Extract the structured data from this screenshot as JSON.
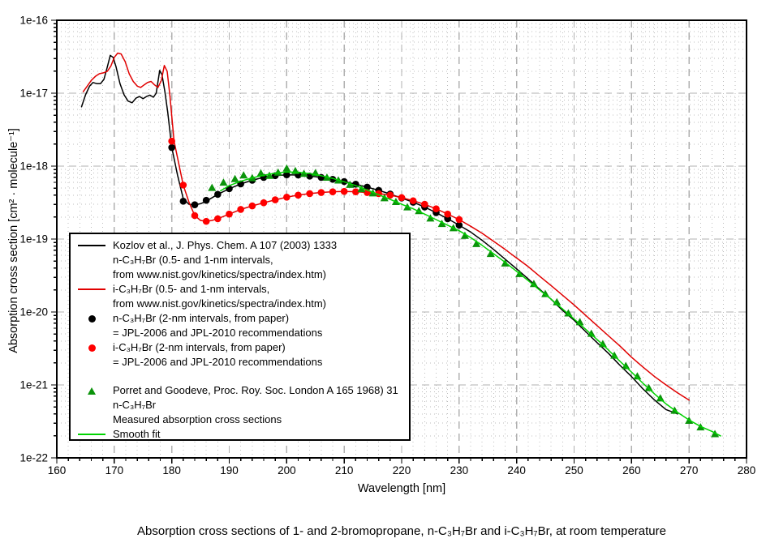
{
  "caption": "Absorption cross sections of 1- and 2-bromopropane, n-C₃H₇Br and i-C₃H₇Br, at room temperature",
  "legend": {
    "entries": [
      {
        "symbol": "line-black",
        "lines": [
          "Kozlov et al.,  J. Phys. Chem. A 107 (2003) 1333",
          "n-C₃H₇Br (0.5- and 1-nm intervals,",
          "from www.nist.gov/kinetics/spectra/index.htm)"
        ]
      },
      {
        "symbol": "line-red",
        "lines": [
          "i-C₃H₇Br (0.5- and 1-nm intervals,",
          "from www.nist.gov/kinetics/spectra/index.htm)"
        ]
      },
      {
        "symbol": "dot-black",
        "lines": [
          "n-C₃H₇Br (2-nm intervals, from paper)",
          "= JPL-2006 and JPL-2010 recommendations"
        ]
      },
      {
        "symbol": "dot-red",
        "lines": [
          "i-C₃H₇Br (2-nm intervals, from paper)",
          "= JPL-2006 and JPL-2010 recommendations"
        ]
      },
      {
        "symbol": "triangle-green",
        "lines": [
          "Porret and Goodeve, Proc. Roy. Soc. London A 165 1968) 31",
          "n-C₃H₇Br",
          "Measured absorption cross sections"
        ]
      },
      {
        "symbol": "line-green",
        "lines": [
          "Smooth fit"
        ]
      }
    ]
  },
  "chart_data": {
    "type": "line",
    "title": "",
    "xlabel": "Wavelength [nm]",
    "ylabel": "Absorption cross section [cm² · molecule⁻¹]",
    "xlim": [
      160,
      280
    ],
    "y_scale": "log",
    "ylim_exponents": [
      -22,
      -16
    ],
    "x_major_ticks": [
      160,
      170,
      180,
      190,
      200,
      210,
      220,
      230,
      240,
      250,
      260,
      270,
      280
    ],
    "x_minor_step": 2,
    "y_tick_labels": [
      "1e-16",
      "1e-17",
      "1e-18",
      "1e-19",
      "1e-20",
      "1e-21",
      "1e-22"
    ],
    "grid": {
      "major_color": "#b0b0b0",
      "minor_color": "#bdbdbd",
      "major_on": true,
      "minor_on": true
    },
    "legend_position": "inside-left",
    "series": [
      {
        "name": "Kozlov n-C3H7Br (0.5- and 1-nm, NIST)",
        "type": "line",
        "color": "#000000",
        "x": [
          164.3,
          165,
          165.7,
          166.3,
          167,
          167.6,
          168.2,
          168.8,
          169.3,
          169.8,
          170.3,
          171,
          171.7,
          172.4,
          173.1,
          173.8,
          174.4,
          175,
          175.6,
          176.2,
          176.8,
          177.3,
          177.9,
          178.3,
          178.8,
          179.3,
          180,
          181,
          182,
          183,
          184,
          185,
          186,
          188,
          190,
          192,
          194,
          196,
          198,
          200,
          202,
          204,
          206,
          208,
          210,
          212,
          214,
          216,
          218,
          220,
          222,
          224,
          226,
          228,
          230,
          232,
          234,
          236,
          238,
          240,
          242,
          244,
          246,
          248,
          250,
          252,
          254,
          256,
          258,
          260,
          262,
          264,
          266,
          268
        ],
        "y": [
          6.5e-18,
          9.5e-18,
          1.25e-17,
          1.4e-17,
          1.35e-17,
          1.35e-17,
          1.55e-17,
          2.3e-17,
          3.3e-17,
          3.1e-17,
          2.3e-17,
          1.35e-17,
          9.5e-18,
          7.8e-18,
          7.4e-18,
          8.6e-18,
          9e-18,
          8.4e-18,
          9e-18,
          9.4e-18,
          8.8e-18,
          1e-17,
          2.05e-17,
          1.8e-17,
          1.05e-17,
          5.5e-18,
          1.8e-18,
          7.5e-19,
          3.6e-19,
          3e-19,
          2.95e-19,
          3.05e-19,
          3.3e-19,
          4.1e-19,
          4.9e-19,
          5.7e-19,
          6.4e-19,
          7e-19,
          7.4e-19,
          7.6e-19,
          7.55e-19,
          7.3e-19,
          7e-19,
          6.6e-19,
          6.15e-19,
          5.65e-19,
          5.15e-19,
          4.65e-19,
          4.15e-19,
          3.65e-19,
          3.2e-19,
          2.75e-19,
          2.3e-19,
          1.9e-19,
          1.55e-19,
          1.25e-19,
          9.6e-20,
          7.2e-20,
          5.3e-20,
          3.9e-20,
          2.85e-20,
          2.05e-20,
          1.5e-20,
          1.05e-20,
          7.7e-21,
          5.4e-21,
          3.8e-21,
          2.7e-21,
          1.85e-21,
          1.3e-21,
          8.8e-22,
          6.2e-22,
          4.6e-22,
          4e-22
        ]
      },
      {
        "name": "i-C3H7Br (0.5- and 1-nm, NIST)",
        "type": "line",
        "color": "#e10000",
        "x": [
          164.6,
          165.3,
          166,
          166.7,
          167.4,
          168.1,
          168.8,
          169.4,
          170,
          170.6,
          171.2,
          171.9,
          172.6,
          173.3,
          174,
          174.6,
          175.2,
          175.8,
          176.4,
          177,
          177.6,
          178.2,
          178.7,
          179.2,
          179.7,
          180.4,
          181,
          182,
          183,
          184,
          185,
          186,
          187,
          188,
          190,
          192,
          194,
          196,
          198,
          200,
          202,
          204,
          206,
          208,
          210,
          212,
          214,
          216,
          218,
          220,
          222,
          224,
          226,
          228,
          230,
          232,
          234,
          236,
          238,
          240,
          242,
          244,
          246,
          248,
          250,
          252,
          254,
          256,
          258,
          260,
          262,
          264,
          266,
          268,
          270
        ],
        "y": [
          1.05e-17,
          1.25e-17,
          1.5e-17,
          1.7e-17,
          1.85e-17,
          1.9e-17,
          2e-17,
          2.35e-17,
          3.1e-17,
          3.55e-17,
          3.45e-17,
          2.7e-17,
          1.85e-17,
          1.45e-17,
          1.25e-17,
          1.2e-17,
          1.3e-17,
          1.4e-17,
          1.45e-17,
          1.3e-17,
          1.2e-17,
          1.5e-17,
          2.4e-17,
          2e-17,
          9e-18,
          2.2e-18,
          1.3e-18,
          5.5e-19,
          3.2e-19,
          2.1e-19,
          1.8e-19,
          1.75e-19,
          1.8e-19,
          1.9e-19,
          2.2e-19,
          2.55e-19,
          2.85e-19,
          3.15e-19,
          3.45e-19,
          3.75e-19,
          4e-19,
          4.2e-19,
          4.35e-19,
          4.45e-19,
          4.5e-19,
          4.45e-19,
          4.35e-19,
          4.2e-19,
          4e-19,
          3.7e-19,
          3.35e-19,
          3e-19,
          2.6e-19,
          2.2e-19,
          1.85e-19,
          1.5e-19,
          1.2e-19,
          9.3e-20,
          7.2e-20,
          5.5e-20,
          4.2e-20,
          3.1e-20,
          2.3e-20,
          1.7e-20,
          1.25e-20,
          9e-21,
          6.5e-21,
          4.7e-21,
          3.4e-21,
          2.4e-21,
          1.75e-21,
          1.3e-21,
          1e-21,
          7.8e-22,
          6.2e-22
        ]
      },
      {
        "name": "n-C3H7Br (2-nm, from paper) = JPL-2006 / JPL-2010",
        "type": "scatter",
        "marker": "circle",
        "color": "#000000",
        "x": [
          180,
          182,
          184,
          186,
          188,
          190,
          192,
          194,
          196,
          198,
          200,
          202,
          204,
          206,
          208,
          210,
          212,
          214,
          216,
          218,
          220,
          222,
          224,
          226,
          228,
          230
        ],
        "y": [
          1.8e-18,
          3.3e-19,
          2.95e-19,
          3.4e-19,
          4.1e-19,
          4.9e-19,
          5.7e-19,
          6.4e-19,
          7e-19,
          7.4e-19,
          7.6e-19,
          7.55e-19,
          7.3e-19,
          7e-19,
          6.6e-19,
          6.15e-19,
          5.65e-19,
          5.15e-19,
          4.65e-19,
          4.15e-19,
          3.65e-19,
          3.2e-19,
          2.75e-19,
          2.3e-19,
          1.9e-19,
          1.55e-19
        ]
      },
      {
        "name": "i-C3H7Br (2-nm, from paper) = JPL-2006 / JPL-2010",
        "type": "scatter",
        "marker": "circle",
        "color": "#ff0000",
        "x": [
          180,
          182,
          184,
          186,
          188,
          190,
          192,
          194,
          196,
          198,
          200,
          202,
          204,
          206,
          208,
          210,
          212,
          214,
          216,
          218,
          220,
          222,
          224,
          226,
          228,
          230
        ],
        "y": [
          2.2e-18,
          5.5e-19,
          2.1e-19,
          1.75e-19,
          1.9e-19,
          2.2e-19,
          2.55e-19,
          2.85e-19,
          3.15e-19,
          3.45e-19,
          3.75e-19,
          4e-19,
          4.2e-19,
          4.35e-19,
          4.45e-19,
          4.5e-19,
          4.45e-19,
          4.35e-19,
          4.2e-19,
          4e-19,
          3.7e-19,
          3.35e-19,
          3e-19,
          2.6e-19,
          2.2e-19,
          1.85e-19
        ]
      },
      {
        "name": "Porret and Goodeve measured n-C3H7Br",
        "type": "scatter",
        "marker": "triangle",
        "color": "#0b930b",
        "x": [
          187,
          189,
          191,
          192.5,
          194,
          195.5,
          197,
          198.5,
          200,
          201.5,
          203,
          205,
          207,
          209,
          211,
          213,
          215,
          217,
          219,
          221,
          223,
          225,
          227,
          229,
          231,
          233,
          235.5,
          238,
          240.5,
          243,
          245,
          247,
          249,
          251,
          253,
          255,
          257,
          259,
          261,
          263,
          265,
          267.5,
          270,
          272,
          274.5
        ],
        "y": [
          5e-19,
          5.9e-19,
          6.6e-19,
          7.4e-19,
          6.8e-19,
          7.9e-19,
          7.3e-19,
          8.1e-19,
          9.2e-19,
          8.5e-19,
          7.8e-19,
          8e-19,
          6.9e-19,
          6.3e-19,
          5.5e-19,
          4.8e-19,
          4.2e-19,
          3.6e-19,
          3.2e-19,
          2.7e-19,
          2.4e-19,
          1.9e-19,
          1.6e-19,
          1.4e-19,
          1.1e-19,
          8.5e-20,
          6.2e-20,
          4.6e-20,
          3.3e-20,
          2.4e-20,
          1.75e-20,
          1.35e-20,
          9.5e-21,
          7.2e-21,
          5e-21,
          3.6e-21,
          2.5e-21,
          1.8e-21,
          1.3e-21,
          9e-22,
          6.5e-22,
          4.4e-22,
          3.2e-22,
          2.6e-22,
          2.1e-22
        ]
      },
      {
        "name": "Smooth fit",
        "type": "line",
        "color": "#00d300",
        "x": [
          188.5,
          190,
          192,
          194,
          196,
          198,
          200,
          202,
          204,
          206,
          208,
          210,
          212,
          214,
          216,
          218,
          220,
          222,
          224,
          226,
          228,
          230,
          232,
          234,
          236,
          238,
          240,
          242,
          244,
          246,
          248,
          250,
          252,
          254,
          256,
          258,
          260,
          262,
          264,
          266,
          268,
          270,
          272,
          274,
          275.5
        ],
        "y": [
          4.6e-19,
          5.4e-19,
          6.2e-19,
          6.9e-19,
          7.5e-19,
          8e-19,
          8.3e-19,
          8.25e-19,
          7.9e-19,
          7.4e-19,
          6.8e-19,
          6.1e-19,
          5.4e-19,
          4.7e-19,
          4.05e-19,
          3.5e-19,
          3e-19,
          2.6e-19,
          2.2e-19,
          1.85e-19,
          1.55e-19,
          1.3e-19,
          1.05e-19,
          8.2e-20,
          6.3e-20,
          4.8e-20,
          3.6e-20,
          2.7e-20,
          2e-20,
          1.5e-20,
          1.1e-20,
          8e-21,
          5.8e-21,
          4.2e-21,
          3e-21,
          2.1e-21,
          1.5e-21,
          1.05e-21,
          7.5e-22,
          5.5e-22,
          4.2e-22,
          3.3e-22,
          2.7e-22,
          2.3e-22,
          2e-22
        ]
      }
    ]
  }
}
